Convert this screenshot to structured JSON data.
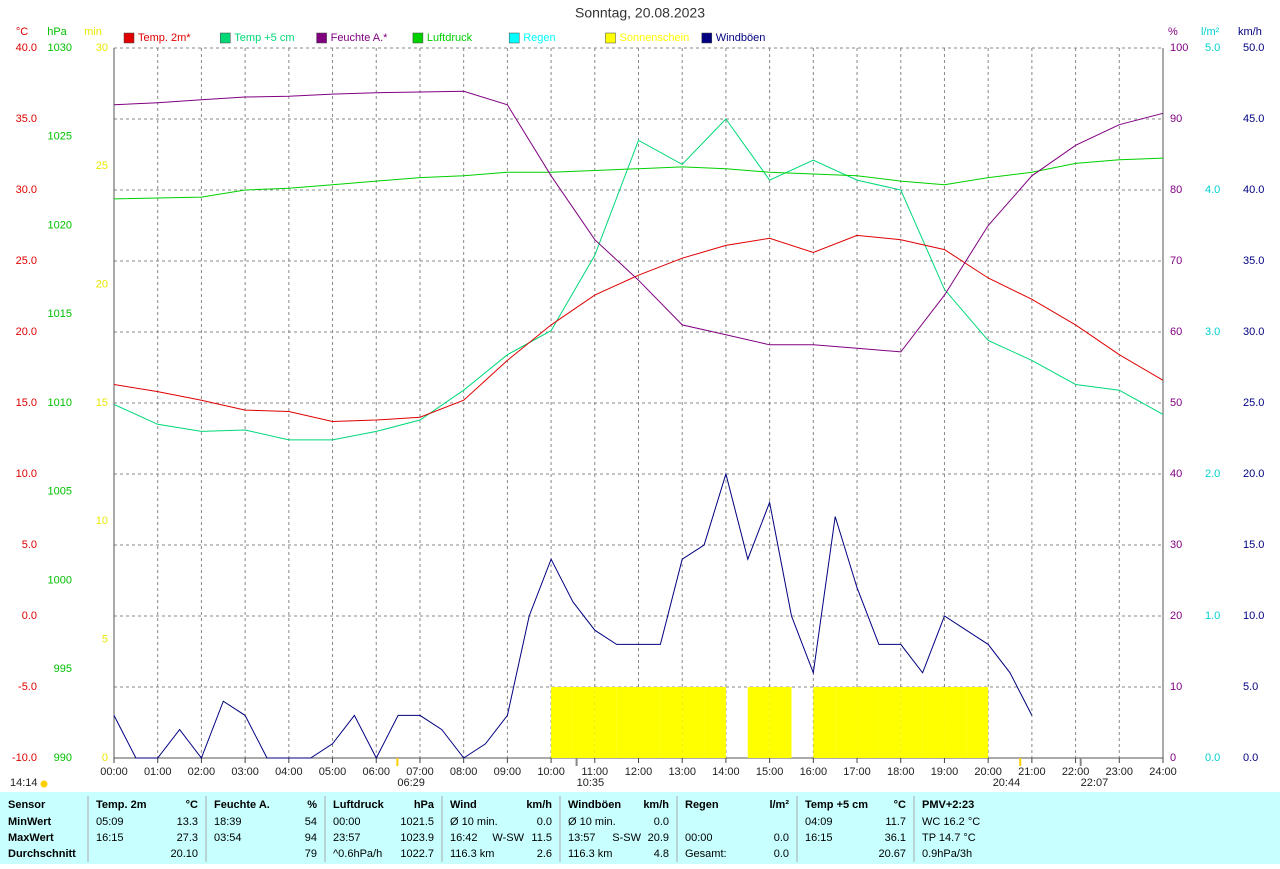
{
  "chart_data": {
    "type": "line",
    "title": "Sonntag, 20.08.2023",
    "xlim": [
      0,
      24
    ],
    "xticks": [
      {
        "value": 0,
        "label": "00:00"
      },
      {
        "value": 1,
        "label": "01:00"
      },
      {
        "value": 2,
        "label": "02:00"
      },
      {
        "value": 3,
        "label": "03:00"
      },
      {
        "value": 4,
        "label": "04:00"
      },
      {
        "value": 5,
        "label": "05:00"
      },
      {
        "value": 6,
        "label": "06:00"
      },
      {
        "value": 7,
        "label": "07:00"
      },
      {
        "value": 8,
        "label": "08:00"
      },
      {
        "value": 9,
        "label": "09:00"
      },
      {
        "value": 10,
        "label": "10:00"
      },
      {
        "value": 11,
        "label": "11:00"
      },
      {
        "value": 12,
        "label": "12:00"
      },
      {
        "value": 13,
        "label": "13:00"
      },
      {
        "value": 14,
        "label": "14:00"
      },
      {
        "value": 15,
        "label": "15:00"
      },
      {
        "value": 16,
        "label": "16:00"
      },
      {
        "value": 17,
        "label": "17:00"
      },
      {
        "value": 18,
        "label": "18:00"
      },
      {
        "value": 19,
        "label": "19:00"
      },
      {
        "value": 20,
        "label": "20:00"
      },
      {
        "value": 21,
        "label": "21:00"
      },
      {
        "value": 22,
        "label": "22:00"
      },
      {
        "value": 23,
        "label": "23:00"
      },
      {
        "value": 24,
        "label": "24:00"
      }
    ],
    "grid": true,
    "axes": {
      "y": {
        "label": "°C",
        "color": "#e00000",
        "side": "left",
        "lim": [
          -10,
          40
        ],
        "ticks": [
          {
            "value": -10,
            "label": "-10.0"
          },
          {
            "value": -5,
            "label": "-5.0"
          },
          {
            "value": 0,
            "label": "0.0"
          },
          {
            "value": 5,
            "label": "5.0"
          },
          {
            "value": 10,
            "label": "10.0"
          },
          {
            "value": 15,
            "label": "15.0"
          },
          {
            "value": 20,
            "label": "20.0"
          },
          {
            "value": 25,
            "label": "25.0"
          },
          {
            "value": 30,
            "label": "30.0"
          },
          {
            "value": 35,
            "label": "35.0"
          },
          {
            "value": 40,
            "label": "40.0"
          }
        ]
      },
      "y2": {
        "label": "hPa",
        "color": "#00c000",
        "side": "left",
        "lim": [
          990,
          1030
        ],
        "ticks": [
          990,
          995,
          1000,
          1005,
          1010,
          1015,
          1020,
          1025,
          1030
        ]
      },
      "y3": {
        "label": "min",
        "color": "#e8e800",
        "side": "left",
        "lim": [
          0,
          30
        ],
        "ticks": [
          0,
          5,
          10,
          15,
          20,
          25,
          30
        ]
      },
      "y4": {
        "label": "%",
        "color": "#800080",
        "side": "right",
        "lim": [
          0,
          100
        ],
        "ticks": [
          0,
          10,
          20,
          30,
          40,
          50,
          60,
          70,
          80,
          90,
          100
        ]
      },
      "y5": {
        "label": "l/m²",
        "color": "#00d0d0",
        "side": "right",
        "lim": [
          0,
          5
        ],
        "ticks": [
          {
            "value": 0,
            "label": "0.0"
          },
          {
            "value": 1,
            "label": "1.0"
          },
          {
            "value": 2,
            "label": "2.0"
          },
          {
            "value": 3,
            "label": "3.0"
          },
          {
            "value": 4,
            "label": "4.0"
          },
          {
            "value": 5,
            "label": "5.0"
          }
        ]
      },
      "y6": {
        "label": "km/h",
        "color": "#000080",
        "side": "right",
        "lim": [
          0,
          50
        ],
        "ticks": [
          {
            "value": 0,
            "label": "0.0"
          },
          {
            "value": 5,
            "label": "5.0"
          },
          {
            "value": 10,
            "label": "10.0"
          },
          {
            "value": 15,
            "label": "15.0"
          },
          {
            "value": 20,
            "label": "20.0"
          },
          {
            "value": 25,
            "label": "25.0"
          },
          {
            "value": 30,
            "label": "30.0"
          },
          {
            "value": 35,
            "label": "35.0"
          },
          {
            "value": 40,
            "label": "40.0"
          },
          {
            "value": 45,
            "label": "45.0"
          },
          {
            "value": 50,
            "label": "50.0"
          }
        ]
      }
    },
    "series": [
      {
        "name": "Temp. 2m*",
        "color": "#e00000",
        "axis": "y",
        "kind": "line",
        "x": [
          0,
          1,
          2,
          3,
          4,
          5,
          6,
          7,
          8,
          9,
          10,
          11,
          12,
          13,
          14,
          15,
          16,
          17,
          18,
          19,
          20,
          21,
          22,
          23,
          24
        ],
        "values": [
          16.3,
          15.8,
          15.2,
          14.5,
          14.4,
          13.7,
          13.8,
          14.0,
          15.2,
          18.0,
          20.5,
          22.6,
          24.0,
          25.2,
          26.1,
          26.6,
          25.6,
          26.8,
          26.5,
          25.8,
          23.8,
          22.3,
          20.5,
          18.4,
          16.6
        ]
      },
      {
        "name": "Temp +5 cm",
        "color": "#00d878",
        "axis": "y",
        "kind": "line",
        "x": [
          0,
          1,
          2,
          3,
          4,
          5,
          6,
          7,
          8,
          9,
          10,
          11,
          12,
          13,
          14,
          15,
          16,
          17,
          18,
          19,
          20,
          21,
          22,
          23,
          24
        ],
        "values": [
          14.9,
          13.5,
          13.0,
          13.1,
          12.4,
          12.4,
          13.0,
          13.8,
          15.9,
          18.4,
          20.1,
          25.4,
          33.5,
          31.8,
          35.0,
          30.7,
          32.1,
          30.7,
          30.0,
          23.0,
          19.4,
          18.0,
          16.3,
          15.9,
          14.2
        ]
      },
      {
        "name": "Feuchte A.*",
        "color": "#800080",
        "axis": "y4",
        "kind": "line",
        "x": [
          0,
          1,
          2,
          3,
          4,
          5,
          6,
          7,
          8,
          9,
          10,
          11,
          12,
          13,
          14,
          15,
          16,
          17,
          18,
          19,
          20,
          21,
          22,
          23,
          24
        ],
        "values": [
          92.0,
          92.3,
          92.7,
          93.1,
          93.2,
          93.5,
          93.7,
          93.8,
          93.9,
          92.0,
          82.0,
          73.0,
          67.3,
          61.0,
          59.6,
          58.2,
          58.2,
          57.7,
          57.2,
          65.2,
          75.0,
          82.0,
          86.3,
          89.2,
          90.8
        ]
      },
      {
        "name": "Luftdruck",
        "color": "#00d000",
        "axis": "y2",
        "kind": "line",
        "x": [
          0,
          2,
          3,
          4,
          5,
          6,
          7,
          8,
          9,
          10,
          11,
          12,
          13,
          14,
          15,
          16,
          17,
          18,
          19,
          20,
          21,
          22,
          23,
          24
        ],
        "values": [
          1021.5,
          1021.6,
          1022.0,
          1022.1,
          1022.3,
          1022.5,
          1022.7,
          1022.8,
          1023.0,
          1023.0,
          1023.1,
          1023.2,
          1023.3,
          1023.2,
          1023.0,
          1022.9,
          1022.8,
          1022.5,
          1022.3,
          1022.7,
          1023.0,
          1023.5,
          1023.7,
          1023.8
        ]
      },
      {
        "name": "Regen",
        "color": "#00ffff",
        "axis": "y5",
        "kind": "line"
      },
      {
        "name": "Sonnenschein",
        "color": "#ffff00",
        "axis": "y3",
        "kind": "bar",
        "x": [
          10,
          10.5,
          11,
          11.5,
          12,
          12.5,
          13,
          13.5,
          14,
          14.5,
          15,
          15.5,
          16,
          16.5,
          17,
          17.5,
          18,
          18.5,
          19,
          19.5
        ],
        "values": [
          3,
          3,
          3,
          3,
          3,
          3,
          3,
          3,
          0,
          3,
          3,
          0,
          3,
          3,
          3,
          3,
          3,
          3,
          3,
          3
        ]
      },
      {
        "name": "Windböen",
        "color": "#000080",
        "axis": "y6",
        "kind": "line",
        "x": [
          0,
          0.5,
          1,
          1.5,
          2,
          2.5,
          3,
          3.5,
          4,
          4.5,
          5,
          5.5,
          6,
          6.5,
          7,
          7.5,
          8,
          8.5,
          9,
          9.5,
          10,
          10.5,
          11,
          11.5,
          12,
          12.5,
          13,
          13.5,
          14,
          14.5,
          15,
          15.5,
          16,
          16.5,
          17,
          17.5,
          18,
          18.5,
          19,
          19.5,
          20,
          20.5,
          21,
          21.5
        ],
        "values": [
          3,
          0,
          0,
          2,
          0,
          4,
          3,
          0,
          0,
          0,
          1,
          3,
          0,
          3,
          3,
          2,
          0,
          1,
          3,
          10,
          14,
          11,
          9,
          8,
          8,
          8,
          14,
          15,
          20,
          14,
          18,
          10,
          6,
          17,
          12,
          8,
          8,
          6,
          10,
          9,
          8,
          6,
          3,
          null
        ]
      }
    ],
    "annotations": [
      "06:29",
      "10:35",
      "20:44",
      "22:07"
    ],
    "daylength": "14:14"
  },
  "table": {
    "columns": [
      {
        "header": "Sensor",
        "rows": [
          [
            "MinWert"
          ],
          [
            "MaxWert"
          ],
          [
            "Durchschnitt"
          ]
        ]
      },
      {
        "header": "Temp. 2m",
        "unit": "°C",
        "rows": [
          [
            "05:09",
            "13.3"
          ],
          [
            "16:15",
            "27.3"
          ],
          [
            "20.10"
          ]
        ]
      },
      {
        "header": "Feuchte A.",
        "unit": "%",
        "rows": [
          [
            "18:39",
            "54"
          ],
          [
            "03:54",
            "94"
          ],
          [
            "79"
          ]
        ]
      },
      {
        "header": "Luftdruck",
        "unit": "hPa",
        "rows": [
          [
            "00:00",
            "1021.5"
          ],
          [
            "23:57",
            "1023.9"
          ],
          [
            "^0.6hPa/h",
            "1022.7"
          ]
        ]
      },
      {
        "header": "Wind",
        "unit": "km/h",
        "rows": [
          [
            "Ø 10 min.",
            "0.0"
          ],
          [
            "16:42",
            "W-SW",
            "11.5"
          ],
          [
            "116.3 km",
            "2.6"
          ]
        ]
      },
      {
        "header": "Windböen",
        "unit": "km/h",
        "rows": [
          [
            "Ø 10 min.",
            "0.0"
          ],
          [
            "13:57",
            "S-SW",
            "20.9"
          ],
          [
            "116.3 km",
            "4.8"
          ]
        ]
      },
      {
        "header": "Regen",
        "unit": "l/m²",
        "rows": [
          [],
          [
            "00:00",
            "0.0"
          ],
          [
            "Gesamt:",
            "0.0"
          ]
        ]
      },
      {
        "header": "Temp +5 cm",
        "unit": "°C",
        "rows": [
          [
            "04:09",
            "11.7"
          ],
          [
            "16:15",
            "36.1"
          ],
          [
            "20.67"
          ]
        ]
      },
      {
        "header": "PMV+2:23",
        "rows": [
          [
            "WC 16.2 °C"
          ],
          [
            "TP 14.7 °C"
          ],
          [
            "0.9hPa/3h"
          ]
        ]
      }
    ]
  }
}
